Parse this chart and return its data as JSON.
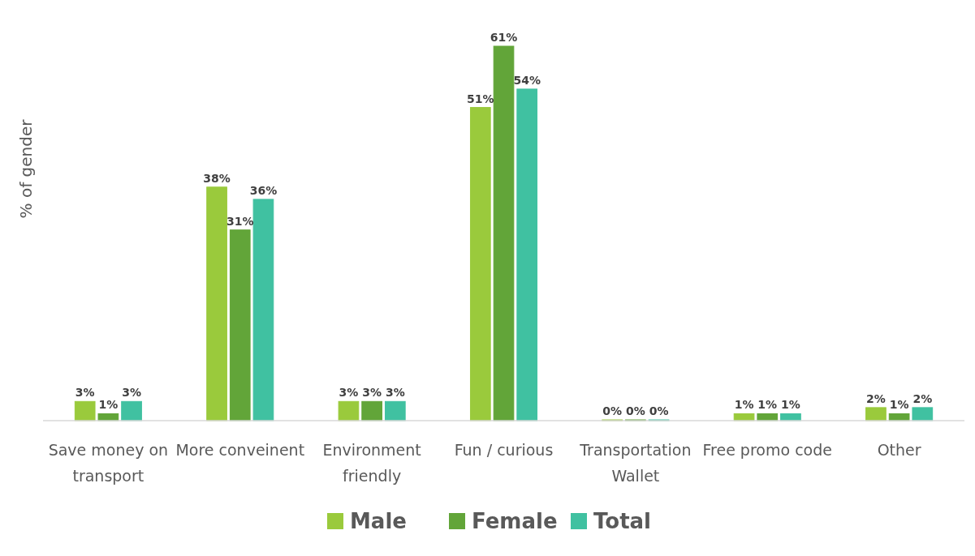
{
  "chart_data": {
    "type": "bar",
    "ylabel": "% of gender",
    "categories": [
      "Save money on transport",
      "More conveinent",
      "Environment friendly",
      "Fun / curious",
      "Transportation Wallet",
      "Free promo code",
      "Other"
    ],
    "series": [
      {
        "name": "Male",
        "color": "#9aca3c",
        "values": [
          3,
          38,
          3,
          51,
          0,
          1,
          2
        ],
        "value_labels": [
          "3%",
          "38%",
          "3%",
          "51%",
          "0%",
          "1%",
          "2%"
        ]
      },
      {
        "name": "Female",
        "color": "#62a539",
        "values": [
          1,
          31,
          3,
          61,
          0,
          1,
          1
        ],
        "value_labels": [
          "1%",
          "31%",
          "3%",
          "61%",
          "0%",
          "1%",
          "1%"
        ]
      },
      {
        "name": "Total",
        "color": "#40c1a1",
        "values": [
          3,
          36,
          3,
          54,
          0,
          1,
          2
        ],
        "value_labels": [
          "3%",
          "36%",
          "3%",
          "54%",
          "0%",
          "1%",
          "2%"
        ]
      }
    ],
    "legend": "bottom"
  }
}
